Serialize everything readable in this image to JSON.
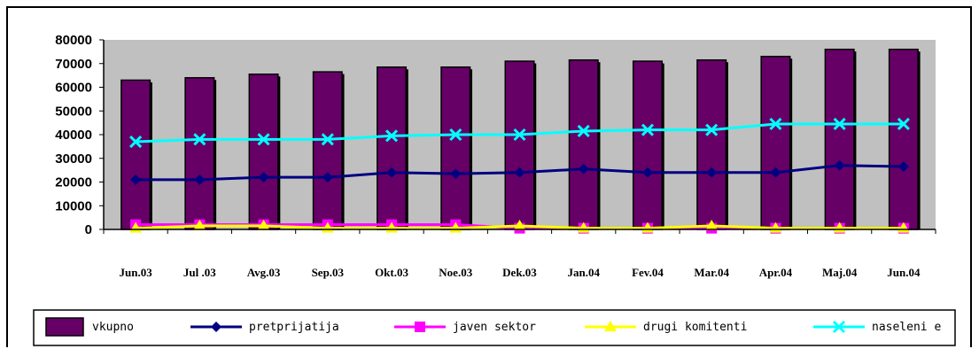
{
  "chart_data": {
    "type": "bar",
    "categories": [
      "Jun.03",
      "Jul .03",
      "Avg.03",
      "Sep.03",
      "Okt.03",
      "Noe.03",
      "Dek.03",
      "Jan.04",
      "Fev.04",
      "Mar.04",
      "Apr.04",
      "Maj.04",
      "Jun.04"
    ],
    "ylim": [
      0,
      80000
    ],
    "yticks": [
      0,
      10000,
      20000,
      30000,
      40000,
      50000,
      60000,
      70000,
      80000
    ],
    "grid": false,
    "plot_background": "#c0c0c0",
    "legend_position": "bottom",
    "series": [
      {
        "name": "vkupno",
        "kind": "bar",
        "color": "#660066",
        "values": [
          63000,
          64000,
          65500,
          66500,
          68500,
          68500,
          71000,
          71500,
          71000,
          71500,
          73000,
          76000,
          76000
        ]
      },
      {
        "name": "pretprijatija",
        "kind": "line",
        "marker": "diamond",
        "color": "#000080",
        "values": [
          21000,
          21000,
          22000,
          22000,
          24000,
          23500,
          24000,
          25500,
          24000,
          24000,
          24000,
          27000,
          26500
        ]
      },
      {
        "name": "javen sektor",
        "kind": "line",
        "marker": "square",
        "color": "#ff00ff",
        "values": [
          2000,
          2000,
          2000,
          2000,
          2000,
          2000,
          500,
          500,
          500,
          500,
          500,
          500,
          500
        ]
      },
      {
        "name": "drugi komitenti",
        "kind": "line",
        "marker": "triangle",
        "color": "#ffff00",
        "values": [
          500,
          1500,
          1500,
          500,
          500,
          500,
          1500,
          500,
          500,
          1500,
          500,
          500,
          500
        ]
      },
      {
        "name": "naseleni e",
        "kind": "line",
        "marker": "x",
        "color": "#00ffff",
        "values": [
          37000,
          38000,
          38000,
          38000,
          39500,
          40000,
          40000,
          41500,
          42000,
          42000,
          44500,
          44500,
          44500
        ]
      }
    ]
  }
}
